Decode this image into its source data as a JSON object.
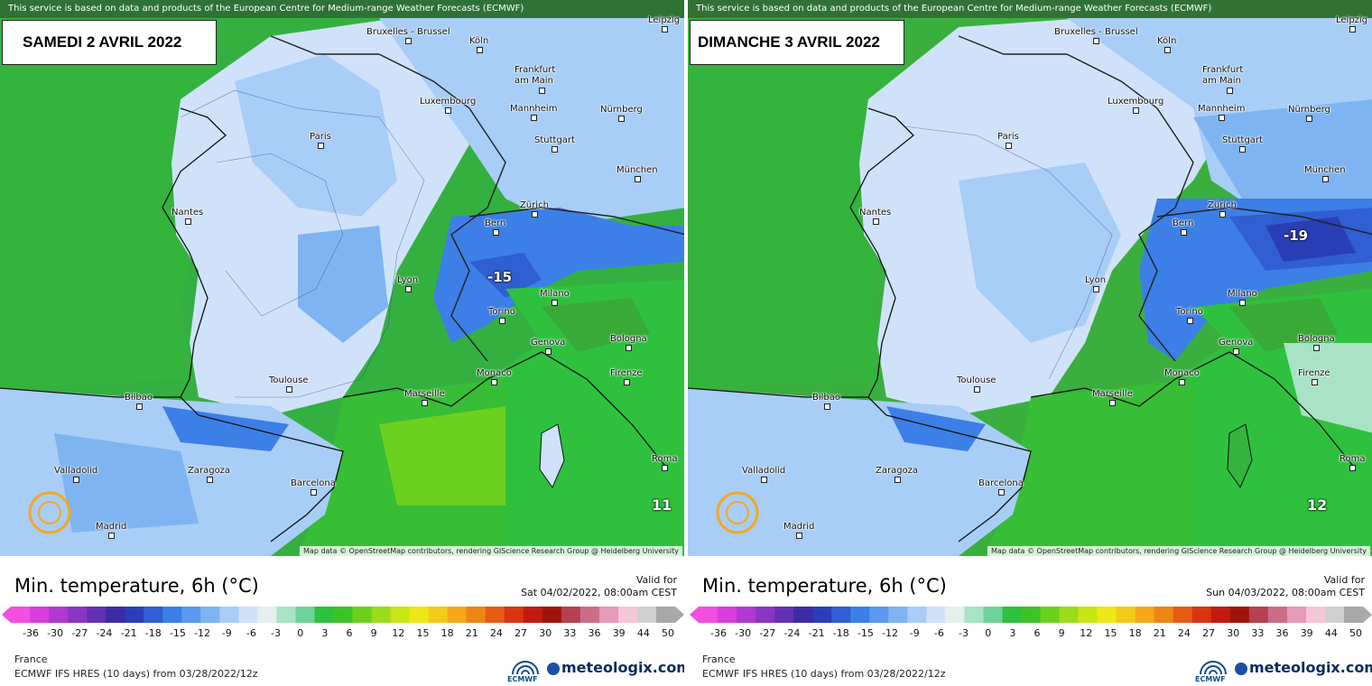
{
  "attribution": "This service is based on data and products of the European Centre for Medium-range Weather Forecasts (ECMWF)",
  "osm_credit": "Map data © OpenStreetMap contributors, rendering GIScience Research Group @ Heidelberg University",
  "cities": [
    "Bruxelles - Brussel",
    "Köln",
    "Leipzig",
    "Frankfurt am Main",
    "Luxembourg",
    "Mannheim",
    "Nürnberg",
    "Paris",
    "Stuttgart",
    "München",
    "Nantes",
    "Bern",
    "Zürich",
    "Lyon",
    "Milano",
    "Torino",
    "Genova",
    "Bologna",
    "Monaco",
    "Firenze",
    "Toulouse",
    "Marseille",
    "Bilbao",
    "Valladolid",
    "Zaragoza",
    "Barcelona",
    "Madrid",
    "Roma"
  ],
  "footer": {
    "title": "Min. temperature, 6h (°C)",
    "valid_label": "Valid for",
    "region": "France",
    "model": "ECMWF IFS HRES (10 days) from 03/28/2022/12z",
    "ecmwf": "ECMWF",
    "brand": "meteologix.com"
  },
  "scale": {
    "ticks": [
      "-36",
      "-30",
      "-27",
      "-24",
      "-21",
      "-18",
      "-15",
      "-12",
      "-9",
      "-6",
      "-3",
      "0",
      "3",
      "6",
      "9",
      "12",
      "15",
      "18",
      "21",
      "24",
      "27",
      "30",
      "33",
      "36",
      "39",
      "44",
      "50"
    ],
    "colors": [
      "#f24ee0",
      "#d83fd9",
      "#b03ad0",
      "#8a35c4",
      "#6530b5",
      "#3d2ba6",
      "#2a3fb5",
      "#2f5fd0",
      "#3c7fe6",
      "#5a99ee",
      "#7fb4f2",
      "#a8cdf6",
      "#cfe2fa",
      "#e4f0ee",
      "#a9e2c4",
      "#6fd39a",
      "#2fc13e",
      "#3ec326",
      "#6cd01f",
      "#9adb1a",
      "#c8e516",
      "#ede816",
      "#f2cc17",
      "#f3a818",
      "#ef8417",
      "#e65b15",
      "#d83412",
      "#c01b10",
      "#a0120e",
      "#b34150",
      "#cc6d88",
      "#e59ab5",
      "#f6c6d8",
      "#d0d0d0",
      "#a8a8a8"
    ]
  },
  "left": {
    "date": "SAMEDI 2 AVRIL 2022",
    "valid_date": "Sat 04/02/2022, 08:00am CEST",
    "big_value": "11",
    "extreme": "-15"
  },
  "right": {
    "date": "DIMANCHE 3 AVRIL 2022",
    "valid_date": "Sun 04/03/2022, 08:00am CEST",
    "big_value": "12",
    "extreme": "-19"
  }
}
